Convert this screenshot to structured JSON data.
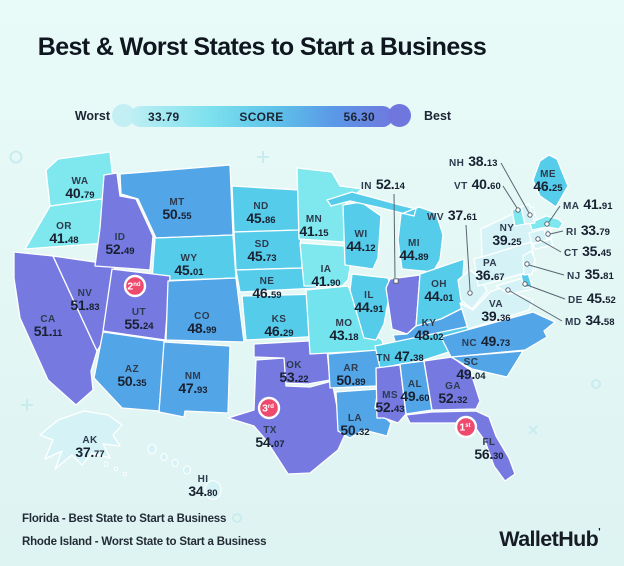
{
  "title": "Best & Worst States to Start a Business",
  "legend": {
    "worst_label": "Worst",
    "min_score": "33.79",
    "score_label": "SCORE",
    "max_score": "56.30",
    "best_label": "Best",
    "gradient": [
      "#bfeff4",
      "#7de1ee",
      "#5ec3e9",
      "#5b97e7",
      "#6f79df"
    ],
    "worst_circle_color": "#c3eff4",
    "best_circle_color": "#6f76dd"
  },
  "badges": [
    {
      "rank": "1",
      "ordinal": "st",
      "state": "FL",
      "color": "#ee4a6e"
    },
    {
      "rank": "2",
      "ordinal": "nd",
      "state": "UT",
      "color": "#ee4a6e"
    },
    {
      "rank": "3",
      "ordinal": "rd",
      "state": "TX",
      "color": "#ee4a6e"
    }
  ],
  "footer": {
    "best_line": "Florida - Best State to Start a Business",
    "worst_line": "Rhode Island - Worst State to Start a Business",
    "brand": "WalletHub"
  },
  "chart_data": {
    "type": "choropleth",
    "title": "Best & Worst States to Start a Business",
    "score_label": "SCORE",
    "score_range": [
      33.79,
      56.3
    ],
    "best_state": "FL",
    "worst_state": "RI",
    "states": [
      {
        "abbr": "WA",
        "score": "40.79",
        "fill": "#7fe7ee"
      },
      {
        "abbr": "OR",
        "score": "41.48",
        "fill": "#7fe7ee"
      },
      {
        "abbr": "CA",
        "score": "51.11",
        "fill": "#767ae0"
      },
      {
        "abbr": "NV",
        "score": "51.83",
        "fill": "#767ae0"
      },
      {
        "abbr": "ID",
        "score": "52.49",
        "fill": "#767ae0"
      },
      {
        "abbr": "MT",
        "score": "50.55",
        "fill": "#52a5e7"
      },
      {
        "abbr": "WY",
        "score": "45.01",
        "fill": "#55cdea"
      },
      {
        "abbr": "UT",
        "score": "55.24",
        "fill": "#767ae0"
      },
      {
        "abbr": "CO",
        "score": "48.99",
        "fill": "#52a5e7"
      },
      {
        "abbr": "AZ",
        "score": "50.35",
        "fill": "#52a5e7"
      },
      {
        "abbr": "NM",
        "score": "47.93",
        "fill": "#52a5e7"
      },
      {
        "abbr": "ND",
        "score": "45.86",
        "fill": "#55cdea"
      },
      {
        "abbr": "SD",
        "score": "45.73",
        "fill": "#55cdea"
      },
      {
        "abbr": "NE",
        "score": "46.59",
        "fill": "#55cdea"
      },
      {
        "abbr": "KS",
        "score": "46.29",
        "fill": "#55cdea"
      },
      {
        "abbr": "OK",
        "score": "53.22",
        "fill": "#767ae0"
      },
      {
        "abbr": "TX",
        "score": "54.07",
        "fill": "#767ae0"
      },
      {
        "abbr": "MN",
        "score": "41.15",
        "fill": "#7fe7ee"
      },
      {
        "abbr": "IA",
        "score": "41.90",
        "fill": "#7fe7ee"
      },
      {
        "abbr": "MO",
        "score": "43.18",
        "fill": "#73e3ed"
      },
      {
        "abbr": "AR",
        "score": "50.89",
        "fill": "#52a5e7"
      },
      {
        "abbr": "LA",
        "score": "50.32",
        "fill": "#52a5e7"
      },
      {
        "abbr": "WI",
        "score": "44.12",
        "fill": "#55cdea"
      },
      {
        "abbr": "IL",
        "score": "44.91",
        "fill": "#55cdea"
      },
      {
        "abbr": "MI",
        "score": "44.89",
        "fill": "#55cdea"
      },
      {
        "abbr": "IN",
        "score": "52.14",
        "fill": "#767ae0"
      },
      {
        "abbr": "OH",
        "score": "44.01",
        "fill": "#55cdea"
      },
      {
        "abbr": "KY",
        "score": "48.02",
        "fill": "#52a5e7"
      },
      {
        "abbr": "TN",
        "score": "47.38",
        "fill": "#55cdea"
      },
      {
        "abbr": "MS",
        "score": "52.43",
        "fill": "#767ae0"
      },
      {
        "abbr": "AL",
        "score": "49.60",
        "fill": "#52a5e7"
      },
      {
        "abbr": "GA",
        "score": "52.32",
        "fill": "#767ae0"
      },
      {
        "abbr": "FL",
        "score": "56.30",
        "fill": "#767ae0"
      },
      {
        "abbr": "SC",
        "score": "49.04",
        "fill": "#52a5e7"
      },
      {
        "abbr": "NC",
        "score": "49.73",
        "fill": "#52a5e7"
      },
      {
        "abbr": "VA",
        "score": "39.36",
        "fill": "#d5f3f7"
      },
      {
        "abbr": "WV",
        "score": "37.61",
        "fill": "#d5f3f7"
      },
      {
        "abbr": "MD",
        "score": "34.58",
        "fill": "#d5f3f7"
      },
      {
        "abbr": "DE",
        "score": "45.52",
        "fill": "#55cdea"
      },
      {
        "abbr": "PA",
        "score": "36.67",
        "fill": "#d5f3f7"
      },
      {
        "abbr": "NJ",
        "score": "35.81",
        "fill": "#d5f3f7"
      },
      {
        "abbr": "NY",
        "score": "39.25",
        "fill": "#d5f3f7"
      },
      {
        "abbr": "CT",
        "score": "35.45",
        "fill": "#d5f3f7"
      },
      {
        "abbr": "RI",
        "score": "33.79",
        "fill": "#d5f3f7"
      },
      {
        "abbr": "MA",
        "score": "41.91",
        "fill": "#7fe7ee"
      },
      {
        "abbr": "VT",
        "score": "40.60",
        "fill": "#7fe7ee"
      },
      {
        "abbr": "NH",
        "score": "38.13",
        "fill": "#d5f3f7"
      },
      {
        "abbr": "ME",
        "score": "46.25",
        "fill": "#55cdea"
      },
      {
        "abbr": "AK",
        "score": "37.77",
        "fill": "#d5f3f7"
      },
      {
        "abbr": "HI",
        "score": "34.80",
        "fill": "#d5f3f7"
      }
    ]
  }
}
